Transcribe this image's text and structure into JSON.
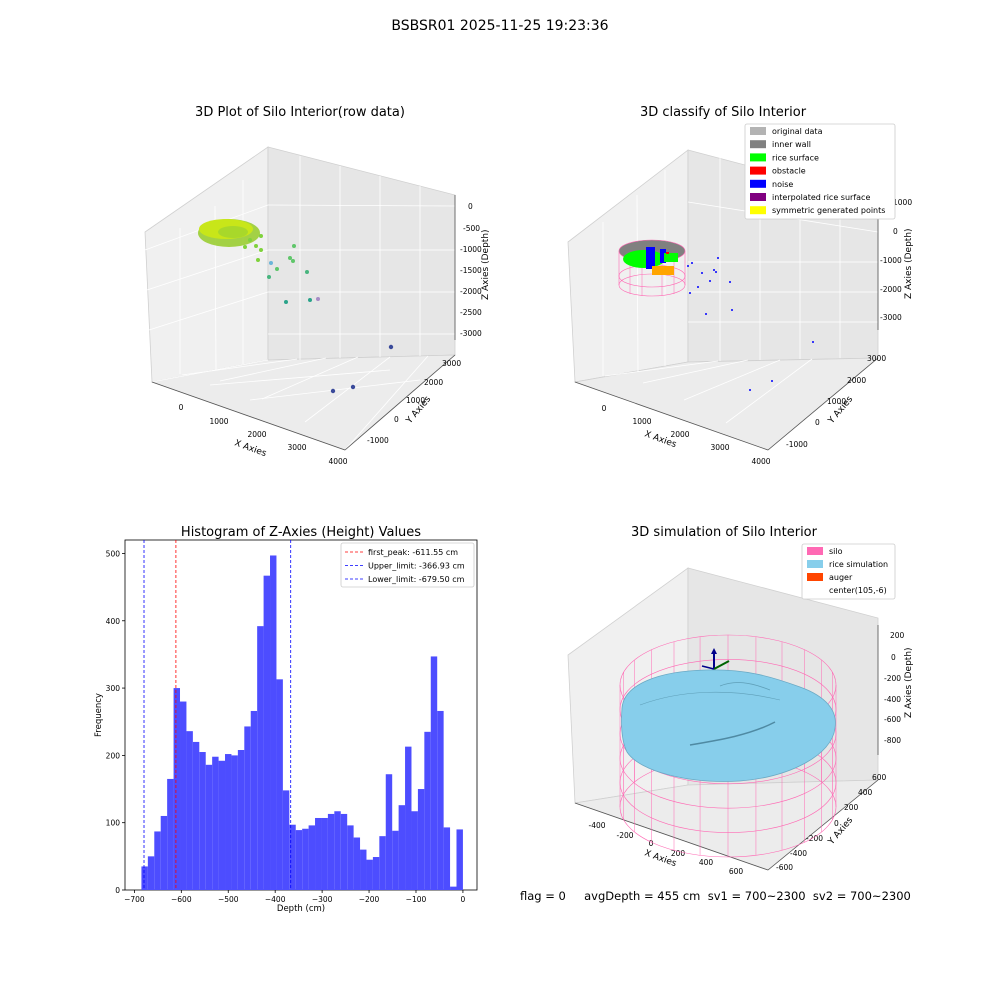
{
  "figure": {
    "suptitle": "BSBSR01 2025-11-25 19:23:36",
    "footer": "flag = 0     avgDepth = 455 cm  sv1 = 700~2300  sv2 = 700~2300"
  },
  "colors": {
    "bar_fill": "#4d4dff",
    "peak_line": "#ff0000",
    "limit_line": "#0000ff",
    "silo": "#ff69b4",
    "rice_simulation": "#87ceeb",
    "auger": "#ff4500",
    "original_data": "#b3b3b3",
    "inner_wall": "#808080",
    "rice_surface": "#00ff00",
    "obstacle": "#ff0000",
    "noise": "#0000ff",
    "interpolated_rice_surface": "#800080",
    "symmetric_generated_points": "#ffff00"
  },
  "chart_data": [
    {
      "type": "scatter",
      "title": "3D Plot of Silo Interior(row data)",
      "xlabel": "X Axies",
      "ylabel": "Y Axies",
      "zlabel": "Z Axies (Depth)",
      "x_ticks": [
        "0",
        "1000",
        "2000",
        "3000",
        "4000"
      ],
      "y_ticks": [
        "-1000",
        "0",
        "1000",
        "2000",
        "3000"
      ],
      "z_ticks": [
        "0",
        "-500",
        "-1000",
        "-1500",
        "-2000",
        "-2500",
        "-3000"
      ]
    },
    {
      "type": "scatter",
      "title": "3D classify of Silo Interior",
      "xlabel": "X Axies",
      "ylabel": "Y Axies",
      "zlabel": "Z Axies (Depth)",
      "x_ticks": [
        "0",
        "1000",
        "2000",
        "3000",
        "4000"
      ],
      "y_ticks": [
        "-1000",
        "0",
        "1000",
        "2000",
        "3000"
      ],
      "z_ticks": [
        "1000",
        "0",
        "-1000",
        "-2000",
        "-3000"
      ],
      "legend": [
        "original data",
        "inner wall",
        "rice surface",
        "obstacle",
        "noise",
        "interpolated rice surface",
        "symmetric generated points"
      ],
      "legend_loc": "upper right"
    },
    {
      "type": "bar",
      "title": "Histogram of Z-Axies (Height) Values",
      "xlabel": "Depth (cm)",
      "ylabel": "Frequency",
      "bin_start": -685,
      "bin_width": 13.7,
      "values": [
        35,
        50,
        87,
        110,
        165,
        300,
        280,
        236,
        220,
        205,
        186,
        198,
        192,
        202,
        200,
        208,
        243,
        266,
        392,
        467,
        497,
        313,
        148,
        97,
        89,
        91,
        96,
        107,
        107,
        113,
        117,
        113,
        96,
        78,
        60,
        45,
        49,
        80,
        172,
        88,
        126,
        213,
        117,
        150,
        235,
        347,
        266,
        93,
        5,
        90
      ],
      "xlim": [
        -720,
        30
      ],
      "ylim": [
        0,
        520
      ],
      "x_ticks": [
        -700,
        -600,
        -500,
        -400,
        -300,
        -200,
        -100,
        0
      ],
      "y_ticks": [
        0,
        100,
        200,
        300,
        400,
        500
      ],
      "vlines": [
        {
          "name": "first_peak: -611.55 cm",
          "x": -611.55,
          "color": "red"
        },
        {
          "name": "Upper_limit: -366.93 cm",
          "x": -366.93,
          "color": "blue"
        },
        {
          "name": "Lower_limit: -679.50 cm",
          "x": -679.5,
          "color": "blue"
        }
      ],
      "legend_loc": "upper right"
    },
    {
      "type": "surface",
      "title": "3D simulation of Silo Interior",
      "xlabel": "X Axies",
      "ylabel": "Y Axies",
      "zlabel": "Z Axies (Depth)",
      "x_ticks": [
        "-400",
        "-200",
        "0",
        "200",
        "400",
        "600"
      ],
      "y_ticks": [
        "-600",
        "-400",
        "-200",
        "0",
        "200",
        "400",
        "600"
      ],
      "z_ticks": [
        "200",
        "0",
        "-200",
        "-400",
        "-600",
        "-800"
      ],
      "legend": [
        "silo",
        "rice simulation",
        "auger",
        "center(105,-6)"
      ],
      "legend_loc": "upper right"
    }
  ]
}
